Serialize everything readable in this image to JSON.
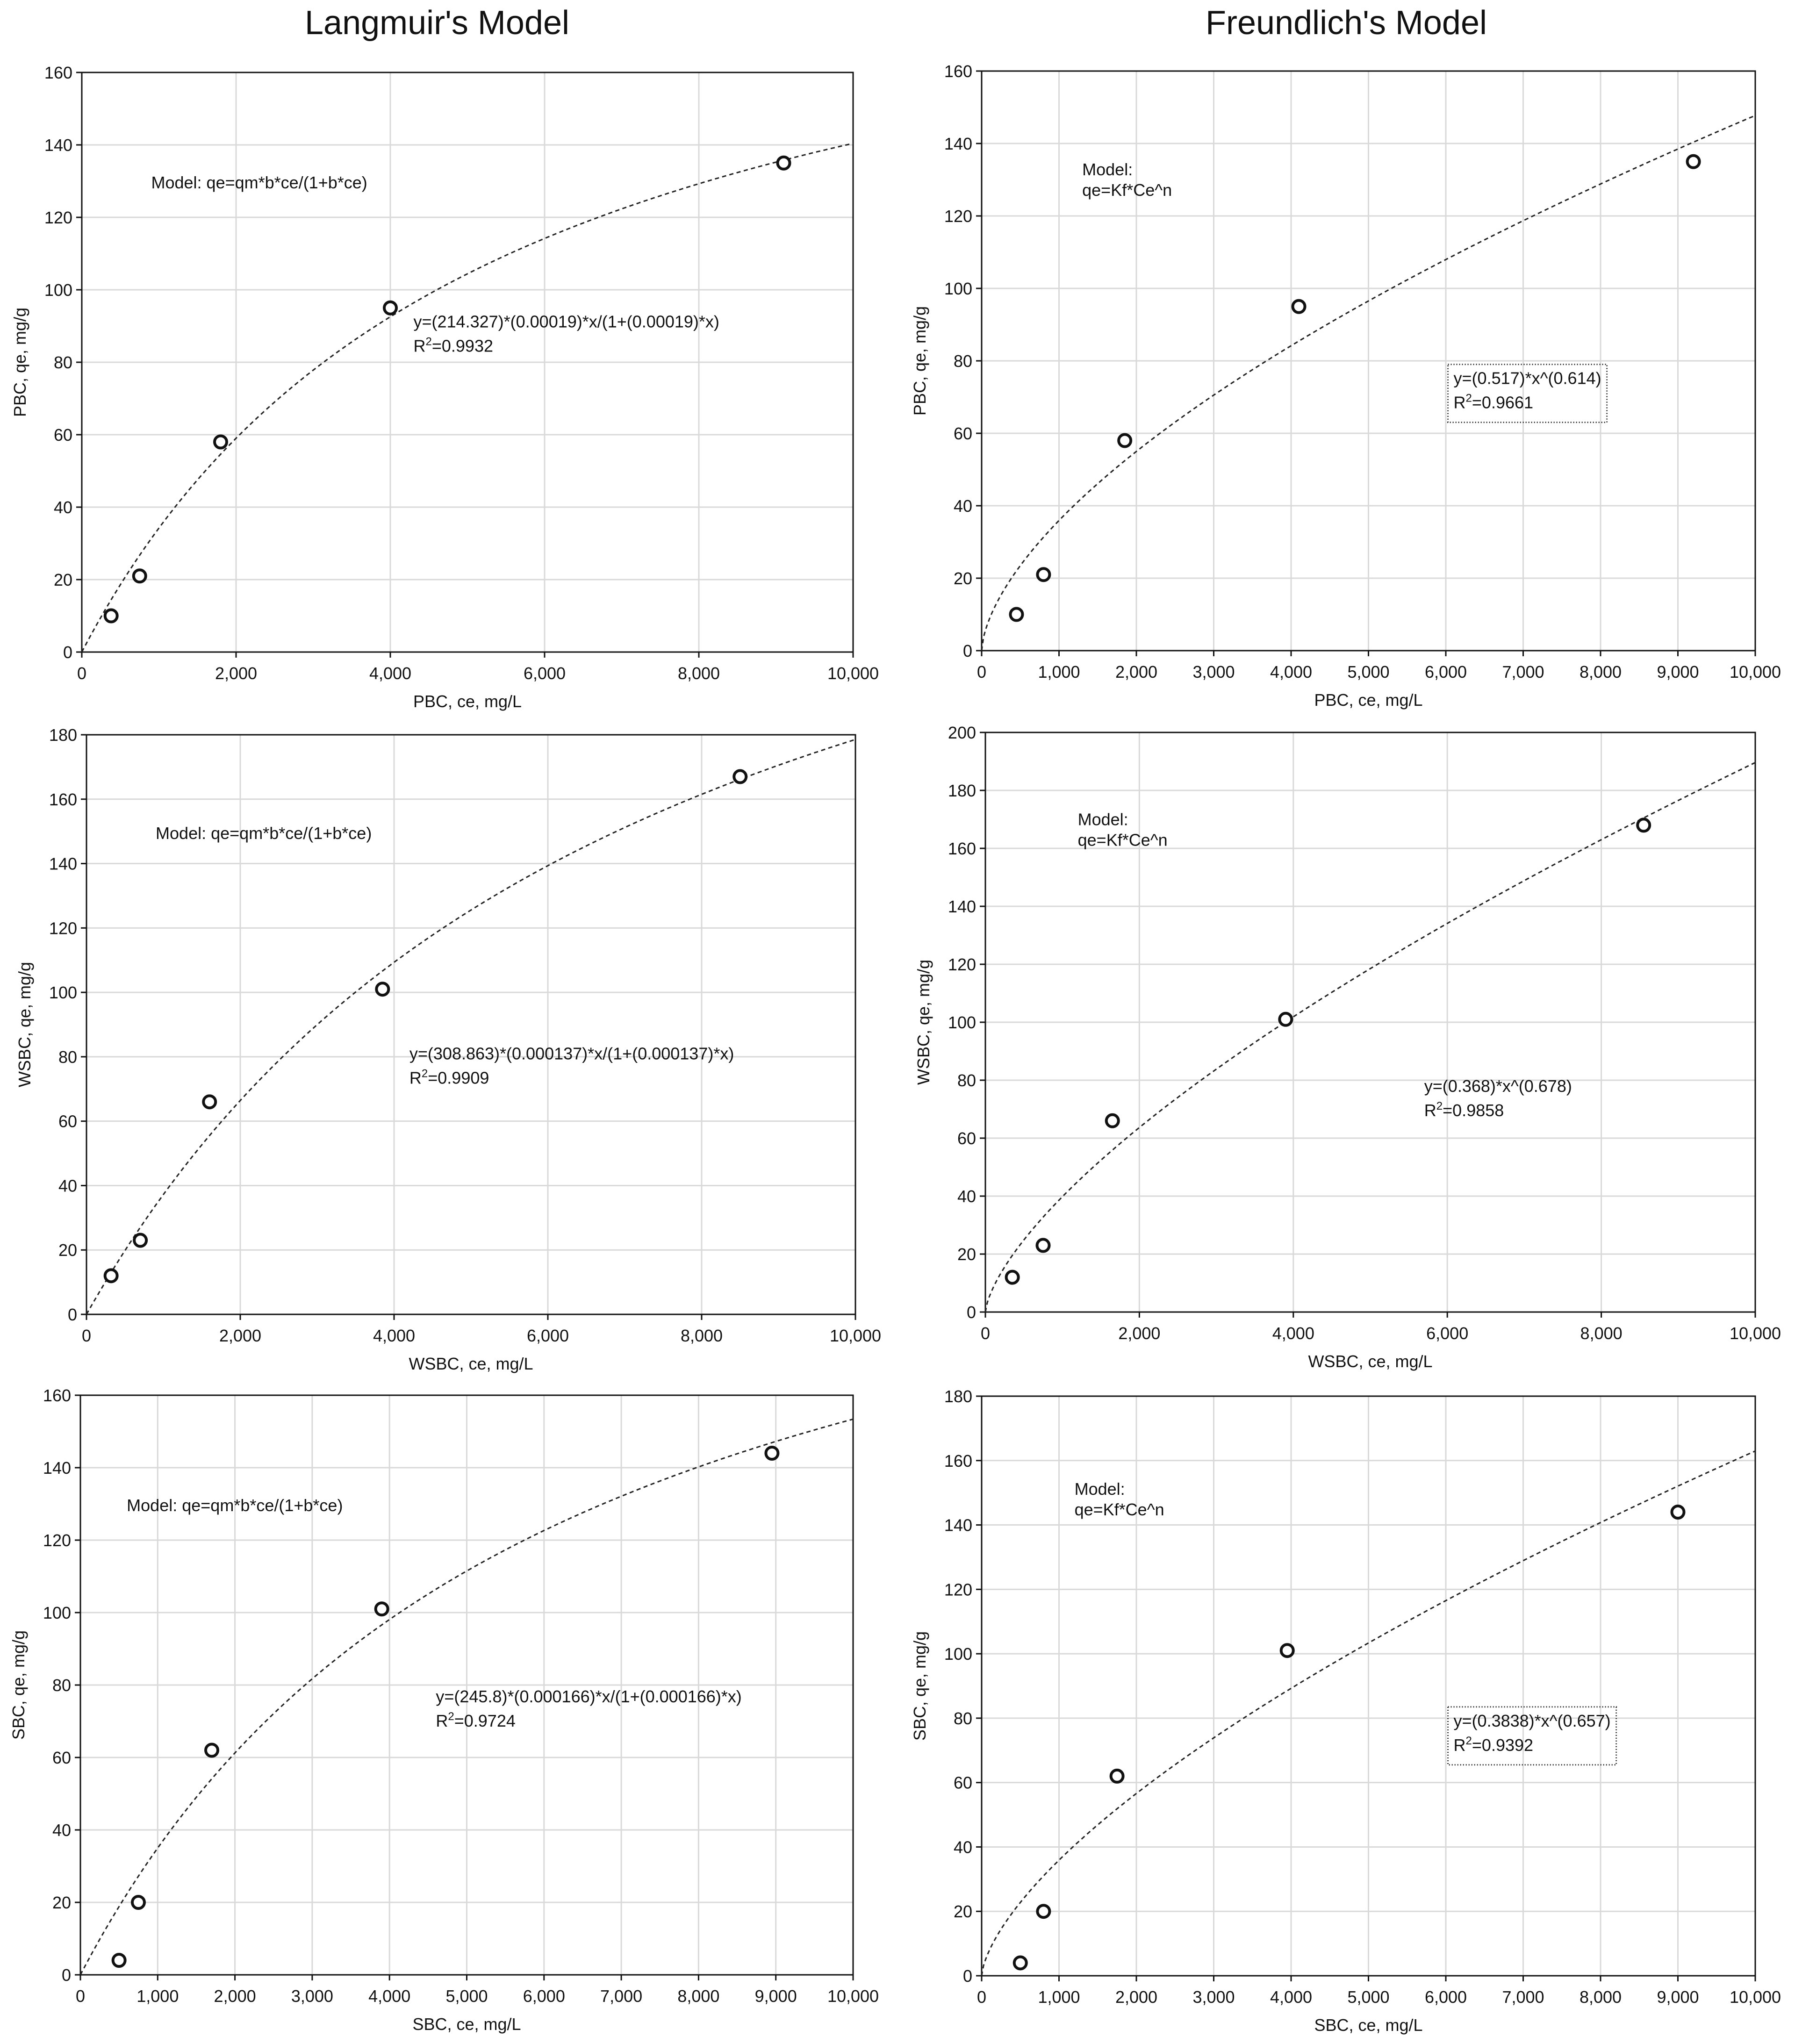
{
  "column_titles": [
    "Langmuir's Model",
    "Freundlich's Model"
  ],
  "chart_data": [
    {
      "type": "scatter",
      "model": "Langmuir",
      "xlabel": "PBC, ce, mg/L",
      "ylabel": "PBC, qe, mg/g",
      "xlim": [
        0,
        10000
      ],
      "ylim": [
        0,
        160
      ],
      "xticks": [
        0,
        2000,
        4000,
        6000,
        8000,
        10000
      ],
      "xtick_labels": [
        "0",
        "2,000",
        "4,000",
        "6,000",
        "8,000",
        "10,000"
      ],
      "yticks": [
        0,
        20,
        40,
        60,
        80,
        100,
        120,
        140,
        160
      ],
      "ytick_labels": [
        "0",
        "20",
        "40",
        "60",
        "80",
        "100",
        "120",
        "140",
        "160"
      ],
      "points": [
        {
          "x": 380,
          "y": 10
        },
        {
          "x": 750,
          "y": 21
        },
        {
          "x": 1800,
          "y": 58
        },
        {
          "x": 4000,
          "y": 95
        },
        {
          "x": 9100,
          "y": 135
        }
      ],
      "fit": {
        "form": "langmuir",
        "qm": 214.327,
        "b": 0.00019
      },
      "model_text": [
        "Model: qe=qm*b*ce/(1+b*ce)"
      ],
      "equation": "y=(214.327)*(0.00019)*x/(1+(0.00019)*x)",
      "r2_label": "R",
      "r2_sup": "2",
      "r2_value": "=0.9932",
      "eq_boxed": false
    },
    {
      "type": "scatter",
      "model": "Freundlich",
      "xlabel": "PBC, ce, mg/L",
      "ylabel": "PBC, qe, mg/g",
      "xlim": [
        0,
        10000
      ],
      "ylim": [
        0,
        160
      ],
      "xticks": [
        0,
        1000,
        2000,
        3000,
        4000,
        5000,
        6000,
        7000,
        8000,
        9000,
        10000
      ],
      "xtick_labels": [
        "0",
        "1,000",
        "2,000",
        "3,000",
        "4,000",
        "5,000",
        "6,000",
        "7,000",
        "8,000",
        "9,000",
        "10,000"
      ],
      "yticks": [
        0,
        20,
        40,
        60,
        80,
        100,
        120,
        140,
        160
      ],
      "ytick_labels": [
        "0",
        "20",
        "40",
        "60",
        "80",
        "100",
        "120",
        "140",
        "160"
      ],
      "points": [
        {
          "x": 450,
          "y": 10
        },
        {
          "x": 800,
          "y": 21
        },
        {
          "x": 1850,
          "y": 58
        },
        {
          "x": 4100,
          "y": 95
        },
        {
          "x": 9200,
          "y": 135
        }
      ],
      "fit": {
        "form": "freundlich",
        "kf": 0.517,
        "n": 0.614
      },
      "model_text": [
        "Model:",
        "qe=Kf*Ce^n"
      ],
      "equation": "y=(0.517)*x^(0.614)",
      "r2_label": "R",
      "r2_sup": "2",
      "r2_value": "=0.9661",
      "eq_boxed": true
    },
    {
      "type": "scatter",
      "model": "Langmuir",
      "xlabel": "WSBC, ce, mg/L",
      "ylabel": "WSBC, qe, mg/g",
      "xlim": [
        0,
        10000
      ],
      "ylim": [
        0,
        180
      ],
      "xticks": [
        0,
        2000,
        4000,
        6000,
        8000,
        10000
      ],
      "xtick_labels": [
        "0",
        "2,000",
        "4,000",
        "6,000",
        "8,000",
        "10,000"
      ],
      "yticks": [
        0,
        20,
        40,
        60,
        80,
        100,
        120,
        140,
        160,
        180
      ],
      "ytick_labels": [
        "0",
        "20",
        "40",
        "60",
        "80",
        "100",
        "120",
        "140",
        "160",
        "180"
      ],
      "points": [
        {
          "x": 320,
          "y": 12
        },
        {
          "x": 700,
          "y": 23
        },
        {
          "x": 1600,
          "y": 66
        },
        {
          "x": 3850,
          "y": 101
        },
        {
          "x": 8500,
          "y": 167
        }
      ],
      "fit": {
        "form": "langmuir",
        "qm": 308.863,
        "b": 0.000137
      },
      "model_text": [
        "Model: qe=qm*b*ce/(1+b*ce)"
      ],
      "equation": "y=(308.863)*(0.000137)*x/(1+(0.000137)*x)",
      "r2_label": "R",
      "r2_sup": "2",
      "r2_value": "=0.9909",
      "eq_boxed": false
    },
    {
      "type": "scatter",
      "model": "Freundlich",
      "xlabel": "WSBC, ce, mg/L",
      "ylabel": "WSBC, qe, mg/g",
      "xlim": [
        0,
        10000
      ],
      "ylim": [
        0,
        200
      ],
      "xticks": [
        0,
        2000,
        4000,
        6000,
        8000,
        10000
      ],
      "xtick_labels": [
        "0",
        "2,000",
        "4,000",
        "6,000",
        "8,000",
        "10,000"
      ],
      "yticks": [
        0,
        20,
        40,
        60,
        80,
        100,
        120,
        140,
        160,
        180,
        200
      ],
      "ytick_labels": [
        "0",
        "20",
        "40",
        "60",
        "80",
        "100",
        "120",
        "140",
        "160",
        "180",
        "200"
      ],
      "points": [
        {
          "x": 350,
          "y": 12
        },
        {
          "x": 750,
          "y": 23
        },
        {
          "x": 1650,
          "y": 66
        },
        {
          "x": 3900,
          "y": 101
        },
        {
          "x": 8550,
          "y": 168
        }
      ],
      "fit": {
        "form": "freundlich",
        "kf": 0.368,
        "n": 0.678
      },
      "model_text": [
        "Model:",
        "qe=Kf*Ce^n"
      ],
      "equation": "y=(0.368)*x^(0.678)",
      "r2_label": "R",
      "r2_sup": "2",
      "r2_value": "=0.9858",
      "eq_boxed": false
    },
    {
      "type": "scatter",
      "model": "Langmuir",
      "xlabel": "SBC, ce, mg/L",
      "ylabel": "SBC, qe, mg/g",
      "xlim": [
        0,
        10000
      ],
      "ylim": [
        0,
        160
      ],
      "xticks": [
        0,
        1000,
        2000,
        3000,
        4000,
        5000,
        6000,
        7000,
        8000,
        9000,
        10000
      ],
      "xtick_labels": [
        "0",
        "1,000",
        "2,000",
        "3,000",
        "4,000",
        "5,000",
        "6,000",
        "7,000",
        "8,000",
        "9,000",
        "10,000"
      ],
      "yticks": [
        0,
        20,
        40,
        60,
        80,
        100,
        120,
        140,
        160
      ],
      "ytick_labels": [
        "0",
        "20",
        "40",
        "60",
        "80",
        "100",
        "120",
        "140",
        "160"
      ],
      "points": [
        {
          "x": 500,
          "y": 4
        },
        {
          "x": 750,
          "y": 20
        },
        {
          "x": 1700,
          "y": 62
        },
        {
          "x": 3900,
          "y": 101
        },
        {
          "x": 8950,
          "y": 144
        }
      ],
      "fit": {
        "form": "langmuir",
        "qm": 245.8,
        "b": 0.000166
      },
      "model_text": [
        "Model: qe=qm*b*ce/(1+b*ce)"
      ],
      "equation": "y=(245.8)*(0.000166)*x/(1+(0.000166)*x)",
      "r2_label": "R",
      "r2_sup": "2",
      "r2_value": "=0.9724",
      "eq_boxed": false
    },
    {
      "type": "scatter",
      "model": "Freundlich",
      "xlabel": "SBC, ce, mg/L",
      "ylabel": "SBC, qe, mg/g",
      "xlim": [
        0,
        10000
      ],
      "ylim": [
        0,
        180
      ],
      "xticks": [
        0,
        1000,
        2000,
        3000,
        4000,
        5000,
        6000,
        7000,
        8000,
        9000,
        10000
      ],
      "xtick_labels": [
        "0",
        "1,000",
        "2,000",
        "3,000",
        "4,000",
        "5,000",
        "6,000",
        "7,000",
        "8,000",
        "9,000",
        "10,000"
      ],
      "yticks": [
        0,
        20,
        40,
        60,
        80,
        100,
        120,
        140,
        160,
        180
      ],
      "ytick_labels": [
        "0",
        "20",
        "40",
        "60",
        "80",
        "100",
        "120",
        "140",
        "160",
        "180"
      ],
      "points": [
        {
          "x": 500,
          "y": 4
        },
        {
          "x": 800,
          "y": 20
        },
        {
          "x": 1750,
          "y": 62
        },
        {
          "x": 3950,
          "y": 101
        },
        {
          "x": 9000,
          "y": 144
        }
      ],
      "fit": {
        "form": "freundlich",
        "kf": 0.3838,
        "n": 0.657
      },
      "model_text": [
        "Model:",
        "qe=Kf*Ce^n"
      ],
      "equation": "y=(0.3838)*x^(0.657)",
      "r2_label": "R",
      "r2_sup": "2",
      "r2_value": "=0.9392",
      "eq_boxed": true
    }
  ]
}
